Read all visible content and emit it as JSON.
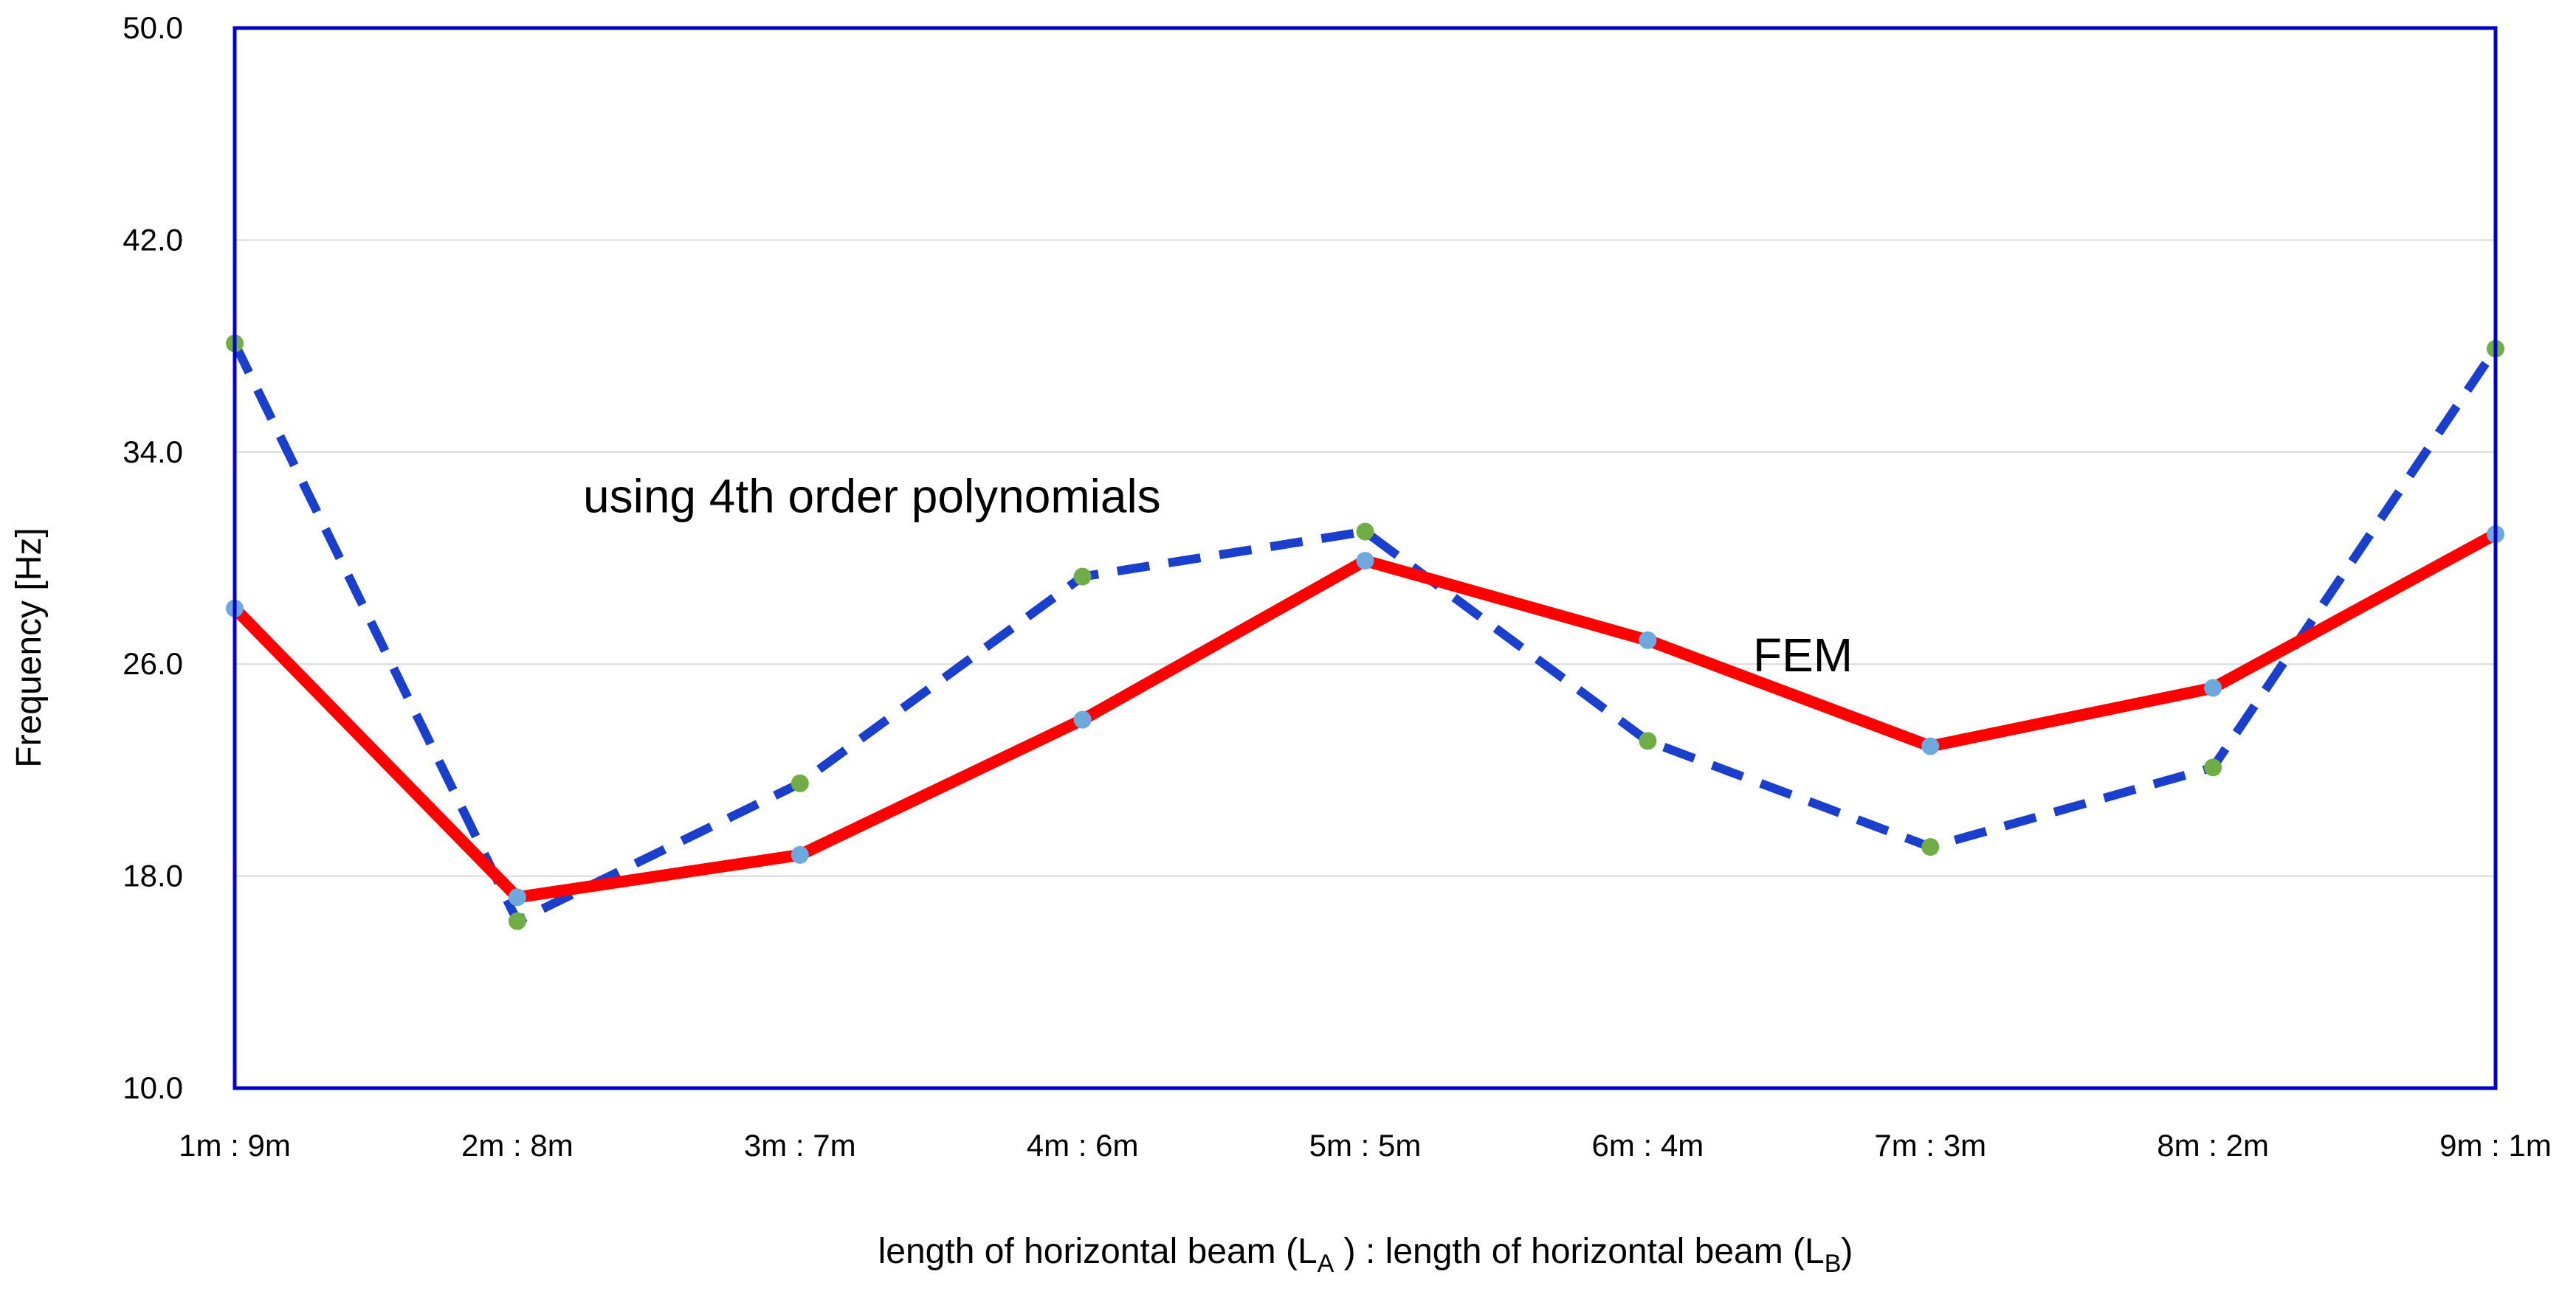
{
  "chart_data": {
    "type": "line",
    "categories": [
      "1m : 9m",
      "2m : 8m",
      "3m : 7m",
      "4m : 6m",
      "5m : 5m",
      "6m : 4m",
      "7m : 3m",
      "8m : 2m",
      "9m : 1m"
    ],
    "series": [
      {
        "name": "FEM",
        "values": [
          28.1,
          17.2,
          18.8,
          23.9,
          29.9,
          26.9,
          22.9,
          25.1,
          30.9
        ],
        "color": "#ff0000",
        "line_style": "solid",
        "marker_color": "#6fa8dc"
      },
      {
        "name": "using 4th order polynomials",
        "values": [
          38.1,
          16.3,
          21.5,
          29.3,
          31.0,
          23.1,
          19.1,
          22.1,
          37.9
        ],
        "color": "#1a3fcc",
        "line_style": "dashed",
        "marker_color": "#70ad47"
      }
    ],
    "ylabel": "Frequency [Hz]",
    "xlabel_main": "length of horizontal beam (L",
    "xlabel_sub_a": "A",
    "xlabel_mid": " ) : length of horizontal beam (L",
    "xlabel_sub_b": "B",
    "xlabel_end": ")",
    "ylim": [
      10.0,
      50.0
    ],
    "yticks": [
      "10.0",
      "18.0",
      "26.0",
      "34.0",
      "42.0",
      "50.0"
    ],
    "grid": "horizontal",
    "frame_color": "#0000cc",
    "grid_color": "#d9d9d9",
    "annotations": [
      {
        "text": "using 4th order polynomials",
        "category": "3m : 7m",
        "y": 32.0
      },
      {
        "text": "FEM",
        "category": "6m : 4m",
        "y": 26.0
      }
    ]
  }
}
